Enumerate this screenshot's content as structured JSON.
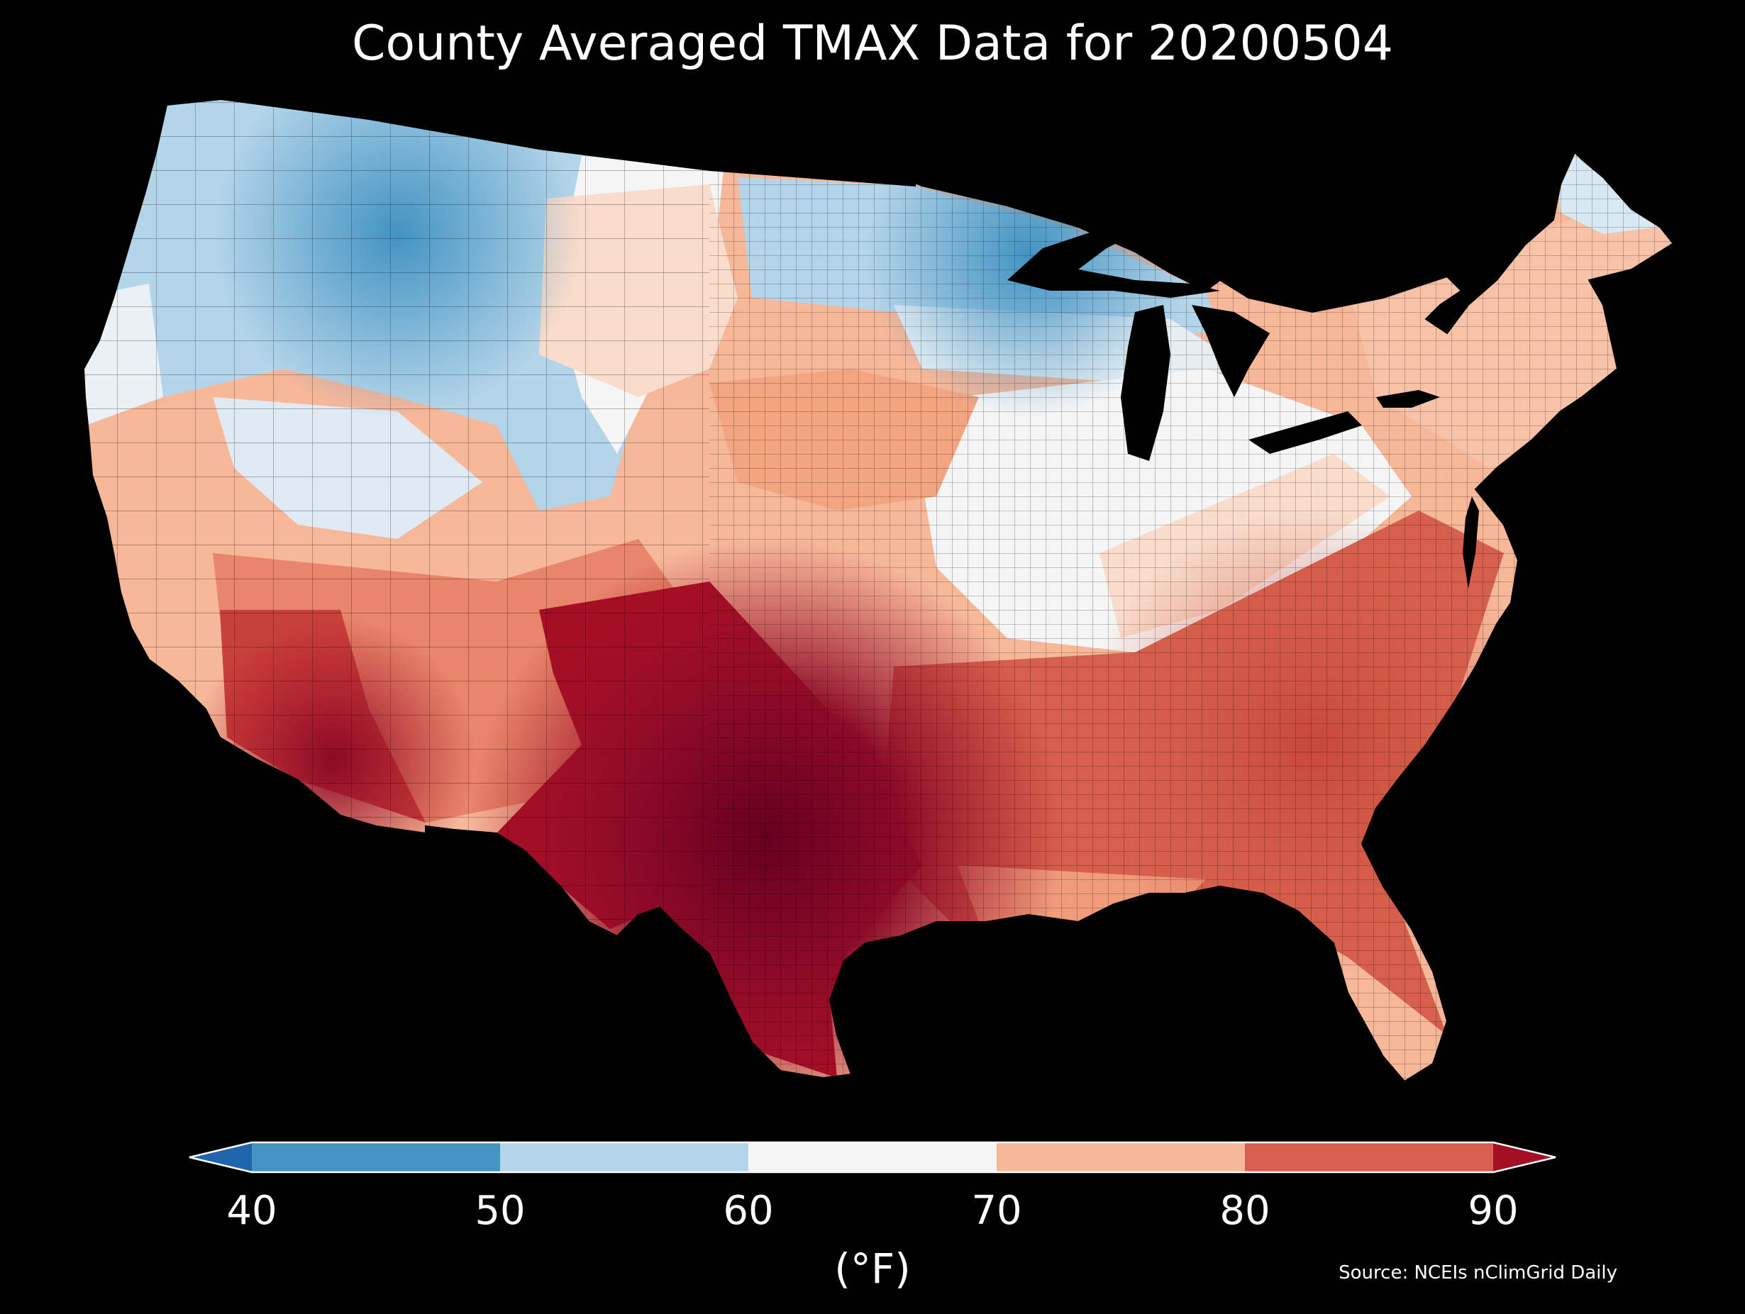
{
  "title": "County Averaged TMAX Data for 20200504",
  "map": {
    "region": "Contiguous United States (county level)",
    "variable": "TMAX",
    "date": "20200504",
    "background": "#000000",
    "county_border_color": "#000000",
    "zones": [
      {
        "name": "Pacific Northwest",
        "class": "50-60"
      },
      {
        "name": "Northern Rockies",
        "class": "40-50"
      },
      {
        "name": "Great Basin",
        "class": "50-60"
      },
      {
        "name": "Northern Plains west",
        "class": "60-70"
      },
      {
        "name": "Upper Midwest / Great Lakes north",
        "class": "50-60"
      },
      {
        "name": "Central Plains",
        "class": "70-80"
      },
      {
        "name": "Ohio Valley / Mid-Atlantic interior",
        "class": "60-70"
      },
      {
        "name": "Northeast",
        "class": "70-80"
      },
      {
        "name": "Maine north",
        "class": "50-60"
      },
      {
        "name": "California coast",
        "class": "70-80"
      },
      {
        "name": "Desert Southwest",
        "class": ">90"
      },
      {
        "name": "Texas",
        "class": ">90"
      },
      {
        "name": "Southeast",
        "class": "80-90"
      },
      {
        "name": "Florida",
        "class": "80-90"
      }
    ]
  },
  "colorbar": {
    "ticks": [
      "40",
      "50",
      "60",
      "70",
      "80",
      "90"
    ],
    "bins": [
      {
        "range": "<40",
        "color": "#2166ac"
      },
      {
        "range": "40-50",
        "color": "#4393c3"
      },
      {
        "range": "50-60",
        "color": "#b4d5e9"
      },
      {
        "range": "60-70",
        "color": "#f5f5f5"
      },
      {
        "range": "70-80",
        "color": "#f7b799"
      },
      {
        "range": "80-90",
        "color": "#d6604d"
      },
      {
        "range": ">90",
        "color": "#a50f26"
      }
    ],
    "unit": "(°F)"
  },
  "source": "Source: NCEIs nClimGrid Daily"
}
